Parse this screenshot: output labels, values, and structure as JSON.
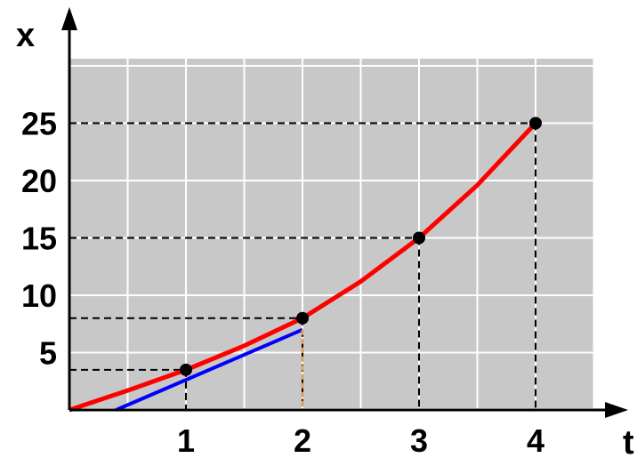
{
  "chart_data": {
    "type": "line",
    "xlabel": "t",
    "ylabel": "x",
    "xlim": [
      0,
      4.5
    ],
    "ylim": [
      0,
      30
    ],
    "grid": true,
    "x_ticks": [
      "1",
      "2",
      "3",
      "4"
    ],
    "y_ticks": [
      "5",
      "10",
      "15",
      "20",
      "25"
    ],
    "series": [
      {
        "color": "#ff0000",
        "x": [
          0,
          0.5,
          1,
          1.5,
          2,
          2.5,
          3,
          3.5,
          4
        ],
        "y": [
          0,
          1.7,
          3.5,
          5.6,
          8,
          11.2,
          15,
          19.6,
          25
        ]
      }
    ],
    "points": [
      {
        "x": 1,
        "y": 3.5
      },
      {
        "x": 2,
        "y": 8
      },
      {
        "x": 3,
        "y": 15
      },
      {
        "x": 4,
        "y": 25
      }
    ],
    "tangent": {
      "color": "#0000ff",
      "x": [
        0.4,
        2
      ],
      "y": [
        0,
        7
      ]
    },
    "colors": {
      "plot_background": "#c8c8c8",
      "grid": "#ffffff",
      "curve": "#ff0000",
      "tangent": "#0000ff",
      "guide": "#e0a060"
    }
  }
}
